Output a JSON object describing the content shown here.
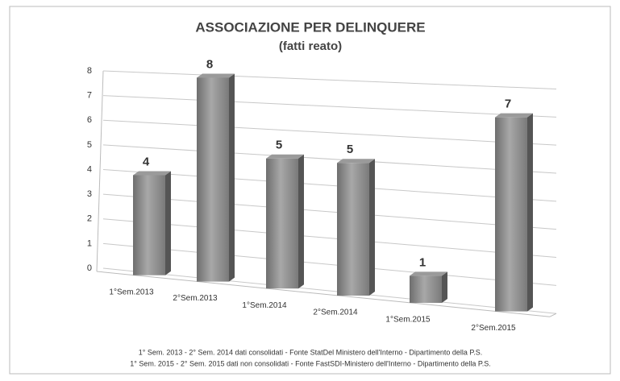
{
  "chart_data": {
    "type": "bar",
    "title": "ASSOCIAZIONE PER DELINQUERE",
    "subtitle": "(fatti reato)",
    "categories": [
      "1°Sem.2013",
      "2°Sem.2013",
      "1°Sem.2014",
      "2°Sem.2014",
      "1°Sem.2015",
      "2°Sem.2015"
    ],
    "values": [
      4,
      8,
      5,
      5,
      1,
      7
    ],
    "color": "#8c8c8c",
    "ylim": [
      0,
      8
    ],
    "yticks": [
      0,
      1,
      2,
      3,
      4,
      5,
      6,
      7,
      8
    ],
    "grid": true,
    "notes": [
      "1° Sem. 2013 - 2° Sem. 2014 dati consolidati - Fonte StatDel Ministero dell'Interno - Dipartimento della P.S.",
      "1° Sem. 2015 - 2° Sem. 2015 dati non consolidati - Fonte FastSDI-Ministero dell'Interno - Dipartimento della P.S."
    ]
  }
}
